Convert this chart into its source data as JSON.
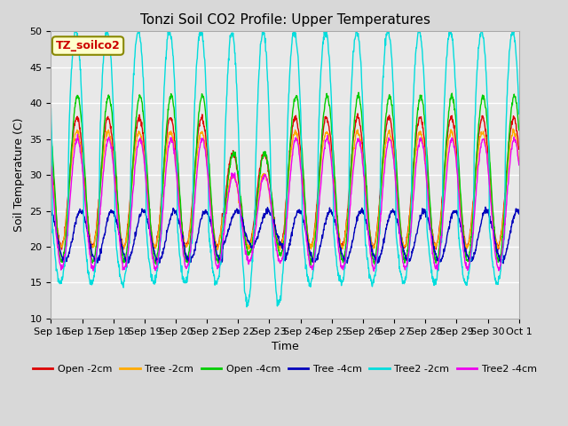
{
  "title": "Tonzi Soil CO2 Profile: Upper Temperatures",
  "xlabel": "Time",
  "ylabel": "Soil Temperature (C)",
  "ylim": [
    10,
    50
  ],
  "xlim": [
    0,
    15
  ],
  "fig_bg": "#d8d8d8",
  "plot_bg": "#e8e8e8",
  "tick_labels": [
    "Sep 16",
    "Sep 17",
    "Sep 18",
    "Sep 19",
    "Sep 20",
    "Sep 21",
    "Sep 22",
    "Sep 23",
    "Sep 24",
    "Sep 25",
    "Sep 26",
    "Sep 27",
    "Sep 28",
    "Sep 29",
    "Sep 30",
    "Oct 1"
  ],
  "series_colors": {
    "Open -2cm": "#dd0000",
    "Tree -2cm": "#ffaa00",
    "Open -4cm": "#00cc00",
    "Tree -4cm": "#0000bb",
    "Tree2 -2cm": "#00dddd",
    "Tree2 -4cm": "#ee00ee"
  },
  "legend_label": "TZ_soilco2",
  "yticks": [
    10,
    15,
    20,
    25,
    30,
    35,
    40,
    45,
    50
  ],
  "grid_color": "#ffffff",
  "title_fontsize": 11,
  "axis_fontsize": 9,
  "tick_fontsize": 8
}
